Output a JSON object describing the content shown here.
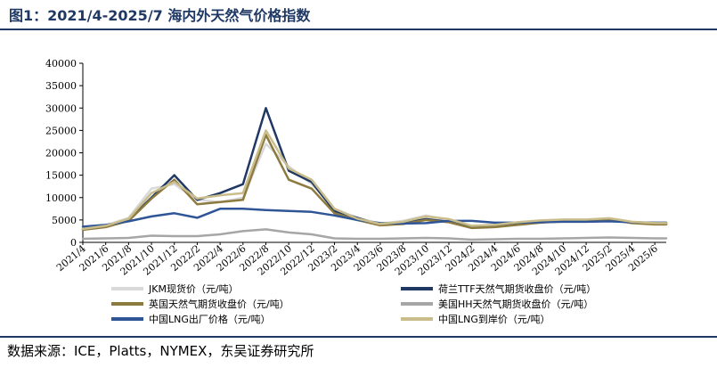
{
  "header": {
    "title": "图1：2021/4-2025/7 海内外天然气价格指数"
  },
  "footer": {
    "source": "数据来源：ICE，Platts，NYMEX，东吴证券研究所"
  },
  "chart_data": {
    "type": "line",
    "title": "图1：2021/4-2025/7 海内外天然气价格指数",
    "xlabel": "",
    "ylabel": "",
    "ylim": [
      0,
      40000
    ],
    "yticks": [
      0,
      5000,
      10000,
      15000,
      20000,
      25000,
      30000,
      35000,
      40000
    ],
    "grid": false,
    "legend_position": "bottom",
    "x_tick_labels": [
      "2021/4",
      "2021/6",
      "2021/8",
      "2021/10",
      "2021/12",
      "2022/2",
      "2022/4",
      "2022/6",
      "2022/8",
      "2022/10",
      "2022/12",
      "2023/2",
      "2023/4",
      "2023/6",
      "2023/8",
      "2023/10",
      "2023/12",
      "2024/2",
      "2024/4",
      "2024/6",
      "2024/8",
      "2024/10",
      "2024/12",
      "2025/2",
      "2025/4",
      "2025/6"
    ],
    "x": [
      "2021/4",
      "2021/6",
      "2021/8",
      "2021/10",
      "2021/12",
      "2022/2",
      "2022/4",
      "2022/6",
      "2022/8",
      "2022/10",
      "2022/12",
      "2023/2",
      "2023/4",
      "2023/6",
      "2023/8",
      "2023/10",
      "2023/12",
      "2024/2",
      "2024/4",
      "2024/6",
      "2024/8",
      "2024/10",
      "2024/12",
      "2025/2",
      "2025/4",
      "2025/6",
      "2025/7"
    ],
    "series": [
      {
        "name": "JKM现货价（元/吨）",
        "color": "#d9d9d9",
        "values": [
          3000,
          3800,
          5500,
          12000,
          13000,
          9500,
          9000,
          10000,
          22000,
          17000,
          13000,
          7500,
          5500,
          4200,
          4800,
          6000,
          5000,
          3600,
          3800,
          4400,
          4800,
          5000,
          5000,
          5300,
          4500,
          4300,
          4300
        ]
      },
      {
        "name": "荷兰TTF天然气期货收盘价（元/吨）",
        "color": "#1f3864",
        "values": [
          2900,
          3500,
          5000,
          10000,
          15000,
          9500,
          11000,
          13000,
          30000,
          16000,
          13500,
          7000,
          5500,
          3900,
          4300,
          5200,
          4600,
          3300,
          3500,
          4000,
          4500,
          4800,
          4900,
          5200,
          4400,
          4100,
          4100
        ]
      },
      {
        "name": "英国天然气期货收盘价（元/吨）",
        "color": "#8c7a3e",
        "values": [
          2800,
          3400,
          4800,
          9800,
          14000,
          8500,
          9000,
          9500,
          24000,
          14000,
          12000,
          6500,
          5000,
          3800,
          4100,
          5000,
          4500,
          3200,
          3400,
          3900,
          4400,
          4700,
          4800,
          5100,
          4300,
          4000,
          4000
        ]
      },
      {
        "name": "美国HH天然气期货收盘价（元/吨）",
        "color": "#a6a6a6",
        "values": [
          800,
          900,
          1000,
          1500,
          1400,
          1400,
          1800,
          2500,
          2900,
          2200,
          1800,
          900,
          800,
          800,
          900,
          1000,
          900,
          600,
          700,
          800,
          800,
          900,
          1000,
          1100,
          1000,
          900,
          900
        ]
      },
      {
        "name": "中国LNG出厂价格（元/吨）",
        "color": "#2f5597",
        "values": [
          3500,
          3900,
          4700,
          5800,
          6500,
          5500,
          7500,
          7500,
          7200,
          7000,
          6800,
          6000,
          5000,
          4300,
          4200,
          4300,
          4800,
          4800,
          4400,
          4400,
          4500,
          4600,
          4600,
          4700,
          4500,
          4400,
          4400
        ]
      },
      {
        "name": "中国LNG到岸价（元/吨）",
        "color": "#c9bd8c",
        "values": [
          3000,
          3700,
          5300,
          11000,
          13500,
          9800,
          10500,
          11000,
          25000,
          16500,
          14000,
          7500,
          5300,
          4100,
          4600,
          5800,
          5200,
          3700,
          3900,
          4500,
          4900,
          5100,
          5100,
          5400,
          4600,
          4300,
          4300
        ]
      }
    ]
  }
}
